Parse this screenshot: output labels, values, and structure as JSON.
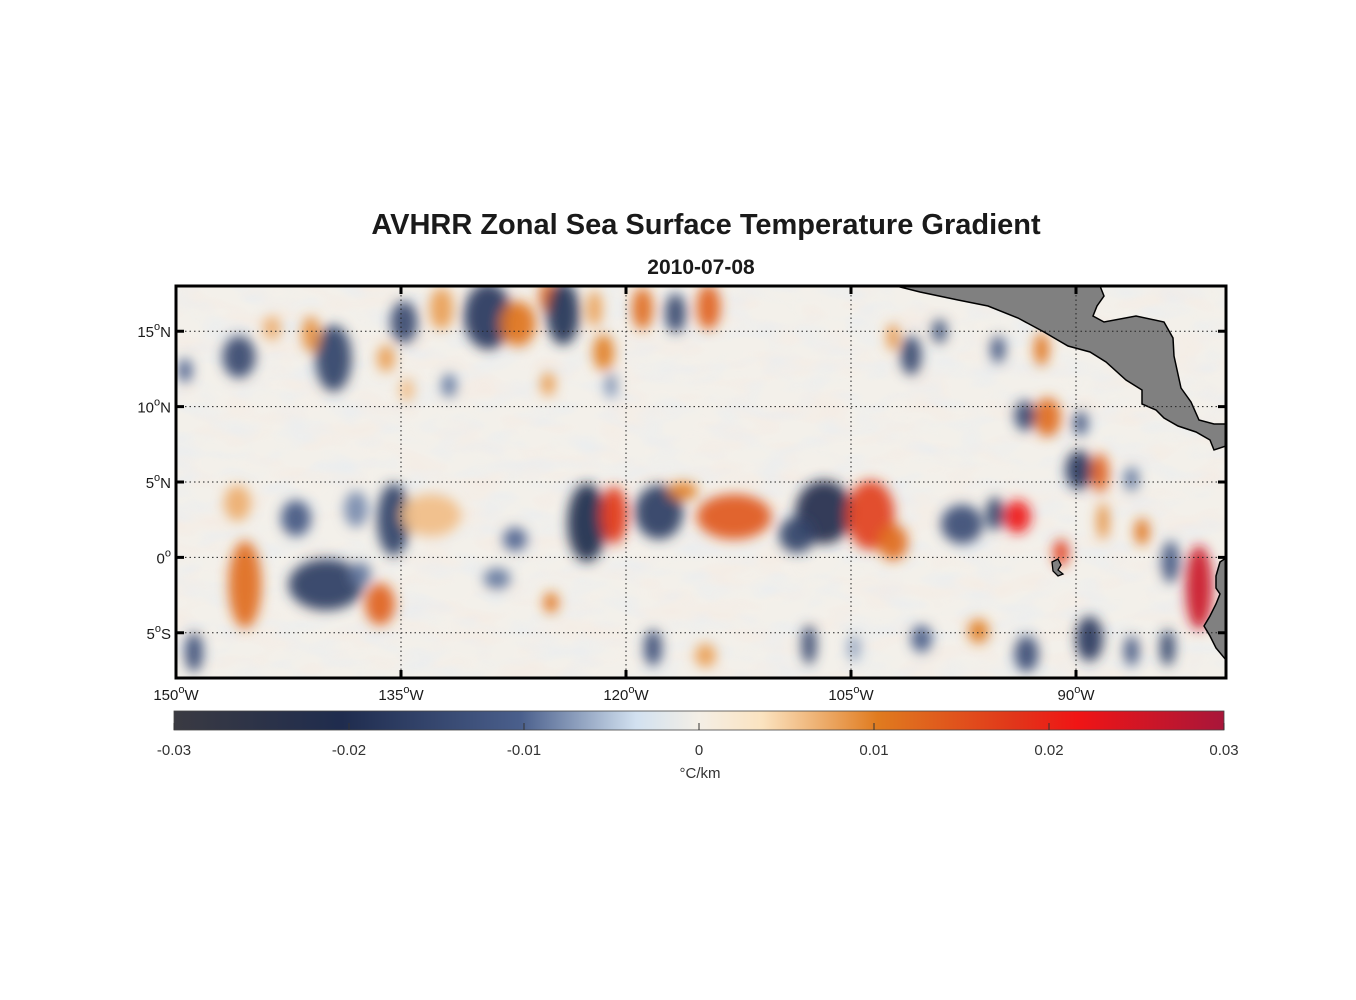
{
  "chart_data": {
    "type": "heatmap",
    "title": "AVHRR Zonal Sea Surface Temperature Gradient",
    "subtitle": "2010-07-08",
    "x_ticks": [
      {
        "lon": -150,
        "deg": "150",
        "suffix": "W"
      },
      {
        "lon": -135,
        "deg": "135",
        "suffix": "W"
      },
      {
        "lon": -120,
        "deg": "120",
        "suffix": "W"
      },
      {
        "lon": -105,
        "deg": "105",
        "suffix": "W"
      },
      {
        "lon": -90,
        "deg": "90",
        "suffix": "W"
      }
    ],
    "y_ticks": [
      {
        "lat": 15,
        "deg": "15",
        "suffix": "N"
      },
      {
        "lat": 10,
        "deg": "10",
        "suffix": "N"
      },
      {
        "lat": 5,
        "deg": "5",
        "suffix": "N"
      },
      {
        "lat": 0,
        "deg": "0",
        "suffix": ""
      },
      {
        "lat": -5,
        "deg": "5",
        "suffix": "S"
      }
    ],
    "lon_range": [
      -150,
      -80
    ],
    "lat_range": [
      -8,
      18
    ],
    "grid": true,
    "colorbar": {
      "ticks": [
        {
          "value": -0.03,
          "label": "-0.03"
        },
        {
          "value": -0.02,
          "label": "-0.02"
        },
        {
          "value": -0.01,
          "label": "-0.01"
        },
        {
          "value": 0,
          "label": "0"
        },
        {
          "value": 0.01,
          "label": "0.01"
        },
        {
          "value": 0.02,
          "label": "0.02"
        },
        {
          "value": 0.03,
          "label": "0.03"
        }
      ],
      "range": [
        -0.03,
        0.03
      ],
      "unit": "°C/km",
      "colors": [
        "#3a3a42",
        "#1f2c4e",
        "#4a5f8c",
        "#d2e1f0",
        "#f4efe6",
        "#fbe3c0",
        "#e07b1f",
        "#e1361a",
        "#f01515",
        "#a8163a"
      ]
    },
    "land_color": "#808080",
    "features": [
      {
        "lon": -139.5,
        "lat": 13.2,
        "v": -0.016,
        "rx": 1.2,
        "ry": 2.2
      },
      {
        "lon": -141,
        "lat": 14.8,
        "v": 0.009,
        "rx": 0.6,
        "ry": 1.2
      },
      {
        "lon": -134.8,
        "lat": 15.6,
        "v": -0.015,
        "rx": 0.9,
        "ry": 1.4
      },
      {
        "lon": -132.3,
        "lat": 16.5,
        "v": 0.008,
        "rx": 0.8,
        "ry": 1.4
      },
      {
        "lon": -129.2,
        "lat": 16,
        "v": -0.018,
        "rx": 1.6,
        "ry": 2.2
      },
      {
        "lon": -127.2,
        "lat": 15.5,
        "v": 0.011,
        "rx": 1.2,
        "ry": 1.5
      },
      {
        "lon": -125.2,
        "lat": 17.3,
        "v": 0.012,
        "rx": 0.6,
        "ry": 1.1
      },
      {
        "lon": -124.2,
        "lat": 16.2,
        "v": -0.019,
        "rx": 1.1,
        "ry": 2.1
      },
      {
        "lon": -122.1,
        "lat": 16.5,
        "v": 0.008,
        "rx": 0.5,
        "ry": 1.2
      },
      {
        "lon": -121.5,
        "lat": 13.6,
        "v": 0.01,
        "rx": 0.7,
        "ry": 1.2
      },
      {
        "lon": -118.9,
        "lat": 16.5,
        "v": 0.012,
        "rx": 0.7,
        "ry": 1.4
      },
      {
        "lon": -114.5,
        "lat": 16.6,
        "v": 0.013,
        "rx": 0.8,
        "ry": 1.5
      },
      {
        "lon": -116.7,
        "lat": 16.2,
        "v": -0.015,
        "rx": 0.7,
        "ry": 1.3
      },
      {
        "lon": -145.8,
        "lat": 13.3,
        "v": -0.015,
        "rx": 1.1,
        "ry": 1.4
      },
      {
        "lon": -143.6,
        "lat": 15.2,
        "v": 0.007,
        "rx": 0.6,
        "ry": 0.8
      },
      {
        "lon": -136,
        "lat": 13.2,
        "v": 0.008,
        "rx": 0.6,
        "ry": 0.9
      },
      {
        "lon": -149.4,
        "lat": 12.4,
        "v": -0.01,
        "rx": 0.5,
        "ry": 0.8
      },
      {
        "lon": -131.8,
        "lat": 11.4,
        "v": -0.009,
        "rx": 0.5,
        "ry": 0.8
      },
      {
        "lon": -134.6,
        "lat": 11.1,
        "v": 0.006,
        "rx": 0.5,
        "ry": 0.8
      },
      {
        "lon": -125.2,
        "lat": 11.5,
        "v": 0.008,
        "rx": 0.5,
        "ry": 0.8
      },
      {
        "lon": -121,
        "lat": 11.4,
        "v": -0.008,
        "rx": 0.4,
        "ry": 0.8
      },
      {
        "lon": -102.2,
        "lat": 14.6,
        "v": 0.009,
        "rx": 0.4,
        "ry": 0.9
      },
      {
        "lon": -101,
        "lat": 13.4,
        "v": -0.015,
        "rx": 0.7,
        "ry": 1.3
      },
      {
        "lon": -99.1,
        "lat": 15,
        "v": -0.013,
        "rx": 0.5,
        "ry": 0.8
      },
      {
        "lon": -95.2,
        "lat": 13.8,
        "v": -0.012,
        "rx": 0.5,
        "ry": 0.9
      },
      {
        "lon": -92.3,
        "lat": 13.8,
        "v": 0.011,
        "rx": 0.5,
        "ry": 1.1
      },
      {
        "lon": -86,
        "lat": 13.6,
        "v": -0.008,
        "rx": 0.5,
        "ry": 0.8
      },
      {
        "lon": -91.9,
        "lat": 9.3,
        "v": 0.012,
        "rx": 0.9,
        "ry": 1.3
      },
      {
        "lon": -93.4,
        "lat": 9.4,
        "v": -0.015,
        "rx": 0.7,
        "ry": 1
      },
      {
        "lon": -89.7,
        "lat": 8.9,
        "v": -0.012,
        "rx": 0.5,
        "ry": 0.8
      },
      {
        "lon": -89.8,
        "lat": 5.8,
        "v": -0.018,
        "rx": 0.9,
        "ry": 1.3
      },
      {
        "lon": -88.4,
        "lat": 5.6,
        "v": 0.013,
        "rx": 0.6,
        "ry": 1.3
      },
      {
        "lon": -86.3,
        "lat": 5.2,
        "v": -0.009,
        "rx": 0.5,
        "ry": 0.8
      },
      {
        "lon": -145.9,
        "lat": 3.6,
        "v": 0.007,
        "rx": 0.9,
        "ry": 1.2
      },
      {
        "lon": -142,
        "lat": 2.6,
        "v": -0.012,
        "rx": 1,
        "ry": 1.2
      },
      {
        "lon": -138,
        "lat": 3.2,
        "v": -0.008,
        "rx": 0.8,
        "ry": 1.2
      },
      {
        "lon": -135.5,
        "lat": 2.5,
        "v": -0.016,
        "rx": 1.1,
        "ry": 2.4
      },
      {
        "lon": -133,
        "lat": 2.8,
        "v": 0.006,
        "rx": 2,
        "ry": 1.4
      },
      {
        "lon": -127.4,
        "lat": 1.2,
        "v": -0.01,
        "rx": 0.8,
        "ry": 0.8
      },
      {
        "lon": -122.6,
        "lat": 2.3,
        "v": -0.021,
        "rx": 1.3,
        "ry": 2.6
      },
      {
        "lon": -120.8,
        "lat": 2.8,
        "v": 0.018,
        "rx": 0.9,
        "ry": 1.9
      },
      {
        "lon": -117.8,
        "lat": 3,
        "v": -0.017,
        "rx": 1.6,
        "ry": 1.8
      },
      {
        "lon": -112.8,
        "lat": 2.7,
        "v": 0.014,
        "rx": 2.5,
        "ry": 1.5
      },
      {
        "lon": -116.2,
        "lat": 4.4,
        "v": 0.01,
        "rx": 1,
        "ry": 0.6
      },
      {
        "lon": -106.8,
        "lat": 3,
        "v": -0.022,
        "rx": 1.9,
        "ry": 2.1
      },
      {
        "lon": -108.6,
        "lat": 1.5,
        "v": -0.016,
        "rx": 1.2,
        "ry": 1.2
      },
      {
        "lon": -103.7,
        "lat": 2.8,
        "v": 0.017,
        "rx": 1.6,
        "ry": 2.3
      },
      {
        "lon": -102.2,
        "lat": 1,
        "v": 0.012,
        "rx": 1,
        "ry": 1.2
      },
      {
        "lon": -97.6,
        "lat": 2.2,
        "v": -0.014,
        "rx": 1.4,
        "ry": 1.3
      },
      {
        "lon": -95.4,
        "lat": 2.9,
        "v": -0.016,
        "rx": 0.6,
        "ry": 1.1
      },
      {
        "lon": -93.9,
        "lat": 2.7,
        "v": 0.021,
        "rx": 0.9,
        "ry": 1.1
      },
      {
        "lon": -91,
        "lat": 0.3,
        "v": 0.018,
        "rx": 0.5,
        "ry": 0.9
      },
      {
        "lon": -85.6,
        "lat": 1.7,
        "v": 0.011,
        "rx": 0.5,
        "ry": 0.9
      },
      {
        "lon": -88.2,
        "lat": 2.4,
        "v": 0.009,
        "rx": 0.4,
        "ry": 1.2
      },
      {
        "lon": -83.7,
        "lat": -0.3,
        "v": -0.012,
        "rx": 0.6,
        "ry": 1.4
      },
      {
        "lon": -81.8,
        "lat": -2,
        "v": 0.026,
        "rx": 0.9,
        "ry": 2.8
      },
      {
        "lon": -83.9,
        "lat": -6,
        "v": -0.016,
        "rx": 0.5,
        "ry": 1.2
      },
      {
        "lon": -145.4,
        "lat": -1.8,
        "v": 0.012,
        "rx": 1.1,
        "ry": 2.9
      },
      {
        "lon": -140,
        "lat": -1.8,
        "v": -0.017,
        "rx": 2.5,
        "ry": 1.7
      },
      {
        "lon": -136.4,
        "lat": -3.1,
        "v": 0.013,
        "rx": 1,
        "ry": 1.4
      },
      {
        "lon": -137.7,
        "lat": -1.1,
        "v": -0.009,
        "rx": 0.7,
        "ry": 0.8
      },
      {
        "lon": -125,
        "lat": -3,
        "v": 0.011,
        "rx": 0.5,
        "ry": 0.7
      },
      {
        "lon": -128.6,
        "lat": -1.4,
        "v": -0.009,
        "rx": 0.9,
        "ry": 0.7
      },
      {
        "lon": -148.8,
        "lat": -6.3,
        "v": -0.014,
        "rx": 0.6,
        "ry": 1.3
      },
      {
        "lon": -118.2,
        "lat": -6,
        "v": -0.014,
        "rx": 0.6,
        "ry": 1.2
      },
      {
        "lon": -114.7,
        "lat": -6.5,
        "v": 0.008,
        "rx": 0.7,
        "ry": 0.8
      },
      {
        "lon": -107.8,
        "lat": -5.8,
        "v": -0.015,
        "rx": 0.5,
        "ry": 1.3
      },
      {
        "lon": -100.3,
        "lat": -5.4,
        "v": -0.011,
        "rx": 0.7,
        "ry": 0.9
      },
      {
        "lon": -96.5,
        "lat": -4.9,
        "v": 0.01,
        "rx": 0.7,
        "ry": 0.8
      },
      {
        "lon": -93.3,
        "lat": -6.4,
        "v": -0.014,
        "rx": 0.8,
        "ry": 1.2
      },
      {
        "lon": -89.1,
        "lat": -5.4,
        "v": -0.018,
        "rx": 0.9,
        "ry": 1.5
      },
      {
        "lon": -86.3,
        "lat": -6.2,
        "v": -0.012,
        "rx": 0.5,
        "ry": 1
      },
      {
        "lon": -104.8,
        "lat": -6,
        "v": -0.007,
        "rx": 0.4,
        "ry": 0.9
      }
    ]
  }
}
